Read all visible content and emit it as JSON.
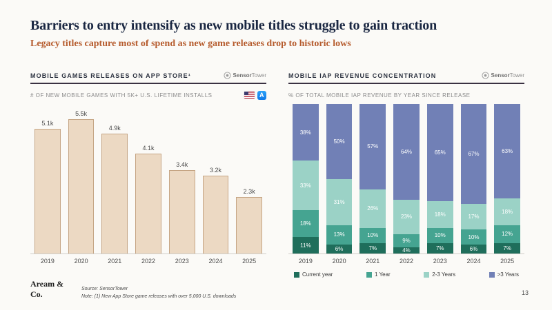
{
  "page": {
    "title": "Barriers to entry intensify as new mobile titles struggle to gain traction",
    "subtitle": "Legacy titles capture most of spend as new game releases drop to historic lows",
    "page_number": "13",
    "footer_logo_line1": "Aream &",
    "footer_logo_line2": "Co.",
    "source_line": "Source: SensorTower",
    "note_line": "Note: (1) New App Store game releases with over 5,000 U.S. downloads"
  },
  "brand": {
    "sensor": "Sensor",
    "tower": "Tower",
    "appstore_letter": "A"
  },
  "colors": {
    "title_navy": "#1a2742",
    "subtitle_rust": "#b65c2e",
    "header_underline": "#3a3142",
    "release_bar_fill": "#ecd9c3",
    "release_bar_border": "#c5a584"
  },
  "chart_data": [
    {
      "type": "bar",
      "title": "MOBILE GAMES RELEASES ON APP STORE¹",
      "subtitle": "# OF NEW MOBILE GAMES WITH 5K+ U.S. LIFETIME INSTALLS",
      "categories": [
        "2019",
        "2020",
        "2021",
        "2022",
        "2023",
        "2024",
        "2025"
      ],
      "values": [
        5100,
        5500,
        4900,
        4100,
        3400,
        3200,
        2300
      ],
      "value_labels": [
        "5.1k",
        "5.5k",
        "4.9k",
        "4.1k",
        "3.4k",
        "3.2k",
        "2.3k"
      ],
      "ylim": [
        0,
        5500
      ],
      "bar_color": "#ecd9c3",
      "bar_border": "#c5a584",
      "grid": false,
      "legend_position": "none"
    },
    {
      "type": "bar",
      "stacked": true,
      "title": "MOBILE IAP REVENUE CONCENTRATION",
      "subtitle": "% OF TOTAL MOBILE IAP REVENUE BY YEAR SINCE RELEASE",
      "categories": [
        "2019",
        "2020",
        "2021",
        "2022",
        "2023",
        "2024",
        "2025"
      ],
      "series": [
        {
          "name": "Current year",
          "color": "#1f6e5b",
          "values": [
            11,
            6,
            7,
            4,
            7,
            6,
            7
          ]
        },
        {
          "name": "1 Year",
          "color": "#45a491",
          "values": [
            18,
            13,
            10,
            9,
            10,
            10,
            12
          ]
        },
        {
          "name": "2-3 Years",
          "color": "#9bd2c6",
          "values": [
            33,
            31,
            26,
            23,
            18,
            17,
            18
          ]
        },
        {
          "name": ">3 Years",
          "color": "#7180b6",
          "values": [
            38,
            50,
            57,
            64,
            65,
            67,
            63
          ]
        }
      ],
      "ylim": [
        0,
        100
      ],
      "grid": false,
      "legend_position": "bottom"
    }
  ]
}
